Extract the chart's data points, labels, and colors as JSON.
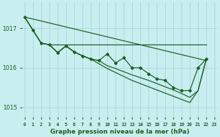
{
  "title": "Graphe pression niveau de la mer (hPa)",
  "xlabel": "Graphe pression niveau de la mer (hPa)",
  "bg_color": "#c8eef0",
  "grid_color": "#aad8dc",
  "line_color": "#1a5e20",
  "text_color": "#1a5e20",
  "x_ticks": [
    0,
    1,
    2,
    3,
    4,
    5,
    6,
    7,
    8,
    9,
    10,
    11,
    12,
    13,
    14,
    15,
    16,
    17,
    18,
    19,
    20,
    21,
    22,
    23
  ],
  "xlim": [
    -0.3,
    23.3
  ],
  "ylim": [
    1014.75,
    1017.65
  ],
  "yticks": [
    1015,
    1016,
    1017
  ],
  "flat_line": {
    "x": [
      3,
      22
    ],
    "y": [
      1016.58,
      1016.58
    ]
  },
  "straight_line": {
    "x": [
      0,
      22
    ],
    "y": [
      1017.28,
      1016.18
    ]
  },
  "measured_x": [
    0,
    1,
    2,
    3,
    4,
    5,
    6,
    7,
    8,
    9,
    10,
    11,
    12,
    13,
    14,
    15,
    16,
    17,
    18,
    19,
    20,
    21,
    22
  ],
  "measured_y": [
    1017.28,
    1016.95,
    1016.62,
    1016.58,
    1016.38,
    1016.55,
    1016.4,
    1016.3,
    1016.22,
    1016.18,
    1016.35,
    1016.12,
    1016.25,
    1016.0,
    1016.0,
    1015.85,
    1015.72,
    1015.68,
    1015.5,
    1015.42,
    1015.42,
    1016.0,
    1016.22
  ],
  "trend_line1_x": [
    0,
    1,
    2,
    3,
    4,
    5,
    6,
    7,
    8,
    9,
    10,
    11,
    12,
    13,
    14,
    15,
    16,
    17,
    18,
    19,
    20,
    21,
    22
  ],
  "trend_line1_y": [
    1017.28,
    1016.95,
    1016.62,
    1016.58,
    1016.38,
    1016.55,
    1016.4,
    1016.3,
    1016.22,
    1016.18,
    1016.05,
    1015.98,
    1015.9,
    1015.82,
    1015.75,
    1015.68,
    1015.6,
    1015.52,
    1015.44,
    1015.35,
    1015.25,
    1015.42,
    1016.22
  ],
  "trend_line2_x": [
    0,
    1,
    2,
    3,
    4,
    5,
    6,
    7,
    8,
    9,
    10,
    11,
    12,
    13,
    14,
    15,
    16,
    17,
    18,
    19,
    20,
    21,
    22
  ],
  "trend_line2_y": [
    1017.28,
    1016.95,
    1016.62,
    1016.58,
    1016.38,
    1016.55,
    1016.4,
    1016.3,
    1016.22,
    1016.1,
    1015.98,
    1015.88,
    1015.78,
    1015.68,
    1015.6,
    1015.52,
    1015.44,
    1015.36,
    1015.28,
    1015.2,
    1015.12,
    1015.42,
    1016.22
  ]
}
